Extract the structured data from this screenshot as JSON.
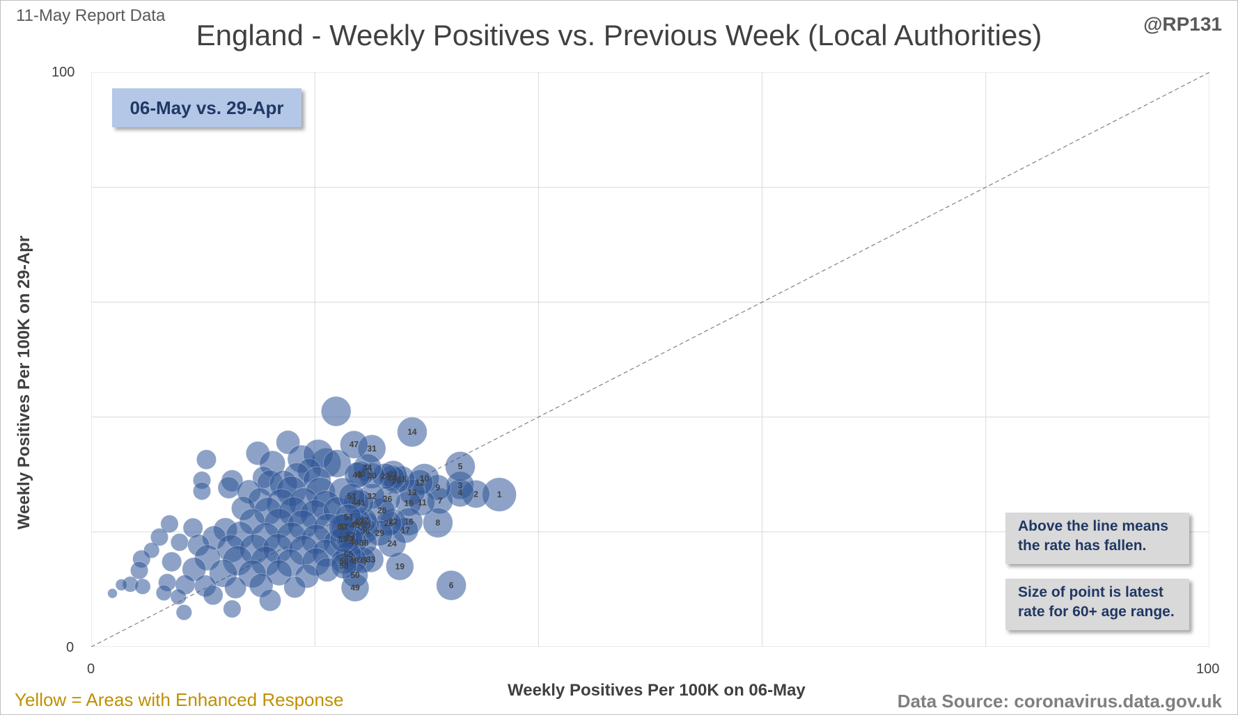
{
  "report_label": "11-May Report Data",
  "handle": "@RP131",
  "legend_box": "06-May vs. 29-Apr",
  "notes": [
    "Above the line means the rate has fallen.",
    "Size of point is latest rate for 60+ age range."
  ],
  "footer": {
    "yellow_note": "Yellow = Areas with Enhanced  Response",
    "source": "Data Source: coronavirus.data.gov.uk"
  },
  "colors": {
    "bubble": "#2f5597",
    "diagonal": "#808080",
    "gridline": "#d9d9d9",
    "legend_box": "#b4c7e7",
    "note_box": "#d9d9d9",
    "yellow_note": "#bf9000"
  },
  "chart_data": {
    "type": "scatter",
    "title": "England - Weekly Positives vs. Previous Week (Local Authorities)",
    "xlabel": "Weekly Positives Per 100K on 06-May",
    "ylabel": "Weekly Positives Per 100K on 29-Apr",
    "xlim": [
      0,
      100
    ],
    "ylim": [
      0,
      100
    ],
    "x_ticks_labeled": [
      "0",
      "100"
    ],
    "y_ticks_labeled": [
      "0",
      "100"
    ],
    "gridlines": [
      0,
      20,
      40,
      60,
      80,
      100
    ],
    "grid": true,
    "reference_line": "y = x",
    "labeled_points": [
      {
        "label": "1",
        "x": 36.5,
        "y": 26.5,
        "size": 14
      },
      {
        "label": "2",
        "x": 34.4,
        "y": 26.6,
        "size": 11
      },
      {
        "label": "3",
        "x": 33.0,
        "y": 28.1,
        "size": 11
      },
      {
        "label": "4",
        "x": 33.0,
        "y": 26.8,
        "size": 11
      },
      {
        "label": "5",
        "x": 33.0,
        "y": 31.4,
        "size": 12
      },
      {
        "label": "6",
        "x": 32.2,
        "y": 10.7,
        "size": 12
      },
      {
        "label": "7",
        "x": 31.2,
        "y": 25.4,
        "size": 10
      },
      {
        "label": "8",
        "x": 31.0,
        "y": 21.6,
        "size": 12
      },
      {
        "label": "9",
        "x": 31.0,
        "y": 27.7,
        "size": 10
      },
      {
        "label": "10",
        "x": 29.8,
        "y": 29.3,
        "size": 12
      },
      {
        "label": "11",
        "x": 29.6,
        "y": 25.1,
        "size": 10
      },
      {
        "label": "12",
        "x": 29.4,
        "y": 28.6,
        "size": 10
      },
      {
        "label": "13",
        "x": 28.7,
        "y": 26.9,
        "size": 10
      },
      {
        "label": "14",
        "x": 28.7,
        "y": 37.4,
        "size": 12
      },
      {
        "label": "15",
        "x": 28.4,
        "y": 25.0,
        "size": 10
      },
      {
        "label": "16",
        "x": 28.4,
        "y": 21.8,
        "size": 11
      },
      {
        "label": "17",
        "x": 28.1,
        "y": 20.3,
        "size": 10
      },
      {
        "label": "18",
        "x": 27.8,
        "y": 29.2,
        "size": 10
      },
      {
        "label": "19",
        "x": 27.6,
        "y": 14.0,
        "size": 11
      },
      {
        "label": "20",
        "x": 27.3,
        "y": 28.9,
        "size": 10
      },
      {
        "label": "21",
        "x": 27.0,
        "y": 30.0,
        "size": 11
      },
      {
        "label": "22",
        "x": 27.0,
        "y": 21.8,
        "size": 10
      },
      {
        "label": "23",
        "x": 26.9,
        "y": 29.4,
        "size": 10
      },
      {
        "label": "24",
        "x": 26.9,
        "y": 18.0,
        "size": 11
      },
      {
        "label": "25",
        "x": 26.6,
        "y": 21.5,
        "size": 10
      },
      {
        "label": "26",
        "x": 26.5,
        "y": 25.7,
        "size": 10
      },
      {
        "label": "27",
        "x": 26.3,
        "y": 29.7,
        "size": 10
      },
      {
        "label": "28",
        "x": 26.0,
        "y": 23.7,
        "size": 10
      },
      {
        "label": "29",
        "x": 25.8,
        "y": 19.8,
        "size": 10
      },
      {
        "label": "30",
        "x": 25.1,
        "y": 29.8,
        "size": 10
      },
      {
        "label": "31",
        "x": 25.1,
        "y": 34.5,
        "size": 11
      },
      {
        "label": "32",
        "x": 25.1,
        "y": 26.2,
        "size": 10
      },
      {
        "label": "33",
        "x": 25.0,
        "y": 15.2,
        "size": 10
      },
      {
        "label": "34",
        "x": 24.7,
        "y": 31.2,
        "size": 11
      },
      {
        "label": "35",
        "x": 24.6,
        "y": 21.2,
        "size": 10
      },
      {
        "label": "36",
        "x": 24.5,
        "y": 20.1,
        "size": 10
      },
      {
        "label": "37",
        "x": 24.4,
        "y": 22.0,
        "size": 10
      },
      {
        "label": "38",
        "x": 24.4,
        "y": 18.1,
        "size": 10
      },
      {
        "label": "39",
        "x": 24.3,
        "y": 15.1,
        "size": 10
      },
      {
        "label": "40",
        "x": 24.1,
        "y": 30.1,
        "size": 10
      },
      {
        "label": "41",
        "x": 24.1,
        "y": 25.1,
        "size": 10
      },
      {
        "label": "42",
        "x": 23.9,
        "y": 21.7,
        "size": 10
      },
      {
        "label": "43",
        "x": 23.8,
        "y": 29.9,
        "size": 10
      },
      {
        "label": "44",
        "x": 23.7,
        "y": 25.1,
        "size": 10
      },
      {
        "label": "45",
        "x": 23.6,
        "y": 21.2,
        "size": 10
      },
      {
        "label": "46",
        "x": 23.5,
        "y": 18.2,
        "size": 10
      },
      {
        "label": "47",
        "x": 23.5,
        "y": 35.2,
        "size": 11
      },
      {
        "label": "48",
        "x": 23.5,
        "y": 15.0,
        "size": 10
      },
      {
        "label": "49",
        "x": 23.6,
        "y": 10.3,
        "size": 11
      },
      {
        "label": "50",
        "x": 23.6,
        "y": 12.5,
        "size": 10
      },
      {
        "label": "51",
        "x": 23.3,
        "y": 26.2,
        "size": 10
      },
      {
        "label": "52",
        "x": 23.2,
        "y": 19.4,
        "size": 10
      },
      {
        "label": "53",
        "x": 23.1,
        "y": 18.8,
        "size": 10
      },
      {
        "label": "54",
        "x": 23.0,
        "y": 22.6,
        "size": 10
      },
      {
        "label": "55",
        "x": 23.0,
        "y": 16.1,
        "size": 10
      },
      {
        "label": "56",
        "x": 22.6,
        "y": 14.9,
        "size": 10
      },
      {
        "label": "57",
        "x": 22.6,
        "y": 20.9,
        "size": 10
      },
      {
        "label": "58",
        "x": 22.6,
        "y": 14.1,
        "size": 10
      },
      {
        "label": "59",
        "x": 22.5,
        "y": 18.7,
        "size": 10
      },
      {
        "label": "60",
        "x": 22.4,
        "y": 20.9,
        "size": 10
      }
    ],
    "unlabeled_points": [
      {
        "x": 21.9,
        "y": 41.0,
        "size": 12
      },
      {
        "x": 17.6,
        "y": 35.6,
        "size": 9
      },
      {
        "x": 14.9,
        "y": 33.7,
        "size": 9
      },
      {
        "x": 10.3,
        "y": 32.6,
        "size": 7
      },
      {
        "x": 16.2,
        "y": 31.9,
        "size": 10
      },
      {
        "x": 21.0,
        "y": 32.0,
        "size": 12
      },
      {
        "x": 18.8,
        "y": 32.7,
        "size": 11
      },
      {
        "x": 20.3,
        "y": 33.5,
        "size": 12
      },
      {
        "x": 22.0,
        "y": 31.9,
        "size": 11
      },
      {
        "x": 19.5,
        "y": 30.7,
        "size": 9
      },
      {
        "x": 18.4,
        "y": 29.8,
        "size": 10
      },
      {
        "x": 20.2,
        "y": 28.9,
        "size": 11
      },
      {
        "x": 15.4,
        "y": 29.5,
        "size": 8
      },
      {
        "x": 16.0,
        "y": 28.5,
        "size": 10
      },
      {
        "x": 17.2,
        "y": 28.3,
        "size": 11
      },
      {
        "x": 12.6,
        "y": 28.9,
        "size": 8
      },
      {
        "x": 12.3,
        "y": 27.7,
        "size": 8
      },
      {
        "x": 9.9,
        "y": 29.0,
        "size": 6
      },
      {
        "x": 9.9,
        "y": 27.1,
        "size": 6
      },
      {
        "x": 14.1,
        "y": 27.0,
        "size": 9
      },
      {
        "x": 17.9,
        "y": 27.1,
        "size": 12
      },
      {
        "x": 20.5,
        "y": 26.9,
        "size": 12
      },
      {
        "x": 22.5,
        "y": 27.0,
        "size": 11
      },
      {
        "x": 15.1,
        "y": 25.6,
        "size": 9
      },
      {
        "x": 17.0,
        "y": 24.9,
        "size": 12
      },
      {
        "x": 19.0,
        "y": 25.1,
        "size": 12
      },
      {
        "x": 21.0,
        "y": 24.6,
        "size": 12
      },
      {
        "x": 13.6,
        "y": 24.1,
        "size": 9
      },
      {
        "x": 15.8,
        "y": 23.6,
        "size": 11
      },
      {
        "x": 18.1,
        "y": 23.5,
        "size": 12
      },
      {
        "x": 20.0,
        "y": 23.0,
        "size": 12
      },
      {
        "x": 22.0,
        "y": 23.7,
        "size": 11
      },
      {
        "x": 7.0,
        "y": 21.4,
        "size": 6
      },
      {
        "x": 9.1,
        "y": 20.7,
        "size": 7
      },
      {
        "x": 12.0,
        "y": 20.4,
        "size": 9
      },
      {
        "x": 14.4,
        "y": 21.8,
        "size": 10
      },
      {
        "x": 16.8,
        "y": 21.5,
        "size": 12
      },
      {
        "x": 18.9,
        "y": 21.2,
        "size": 12
      },
      {
        "x": 21.2,
        "y": 20.6,
        "size": 12
      },
      {
        "x": 6.1,
        "y": 19.1,
        "size": 6
      },
      {
        "x": 7.9,
        "y": 18.2,
        "size": 6
      },
      {
        "x": 11.0,
        "y": 19.0,
        "size": 9
      },
      {
        "x": 13.3,
        "y": 19.4,
        "size": 11
      },
      {
        "x": 15.6,
        "y": 19.0,
        "size": 12
      },
      {
        "x": 17.9,
        "y": 19.1,
        "size": 12
      },
      {
        "x": 20.1,
        "y": 18.7,
        "size": 12
      },
      {
        "x": 22.0,
        "y": 18.0,
        "size": 11
      },
      {
        "x": 5.4,
        "y": 16.8,
        "size": 5
      },
      {
        "x": 9.6,
        "y": 17.7,
        "size": 8
      },
      {
        "x": 12.5,
        "y": 17.1,
        "size": 11
      },
      {
        "x": 14.6,
        "y": 17.0,
        "size": 12
      },
      {
        "x": 16.7,
        "y": 17.1,
        "size": 12
      },
      {
        "x": 19.0,
        "y": 16.8,
        "size": 12
      },
      {
        "x": 21.0,
        "y": 16.3,
        "size": 11
      },
      {
        "x": 4.5,
        "y": 15.3,
        "size": 6
      },
      {
        "x": 7.2,
        "y": 14.8,
        "size": 7
      },
      {
        "x": 10.4,
        "y": 15.5,
        "size": 10
      },
      {
        "x": 13.1,
        "y": 15.0,
        "size": 12
      },
      {
        "x": 15.6,
        "y": 14.9,
        "size": 12
      },
      {
        "x": 17.8,
        "y": 14.6,
        "size": 11
      },
      {
        "x": 20.1,
        "y": 14.8,
        "size": 11
      },
      {
        "x": 4.3,
        "y": 13.3,
        "size": 6
      },
      {
        "x": 9.2,
        "y": 13.5,
        "size": 9
      },
      {
        "x": 11.8,
        "y": 12.8,
        "size": 11
      },
      {
        "x": 14.4,
        "y": 12.7,
        "size": 11
      },
      {
        "x": 16.8,
        "y": 12.9,
        "size": 10
      },
      {
        "x": 19.3,
        "y": 12.3,
        "size": 9
      },
      {
        "x": 21.1,
        "y": 13.4,
        "size": 9
      },
      {
        "x": 3.5,
        "y": 10.9,
        "size": 5
      },
      {
        "x": 4.6,
        "y": 10.5,
        "size": 5
      },
      {
        "x": 6.8,
        "y": 11.2,
        "size": 6
      },
      {
        "x": 8.4,
        "y": 10.8,
        "size": 7
      },
      {
        "x": 10.2,
        "y": 10.6,
        "size": 8
      },
      {
        "x": 12.9,
        "y": 10.3,
        "size": 8
      },
      {
        "x": 15.2,
        "y": 10.7,
        "size": 9
      },
      {
        "x": 2.7,
        "y": 10.8,
        "size": 3
      },
      {
        "x": 1.9,
        "y": 9.3,
        "size": 2
      },
      {
        "x": 6.5,
        "y": 9.4,
        "size": 5
      },
      {
        "x": 7.8,
        "y": 8.7,
        "size": 5
      },
      {
        "x": 10.9,
        "y": 9.0,
        "size": 7
      },
      {
        "x": 8.3,
        "y": 6.0,
        "size": 5
      },
      {
        "x": 12.6,
        "y": 6.6,
        "size": 6
      },
      {
        "x": 16.0,
        "y": 8.1,
        "size": 8
      },
      {
        "x": 18.2,
        "y": 10.4,
        "size": 8
      }
    ]
  }
}
